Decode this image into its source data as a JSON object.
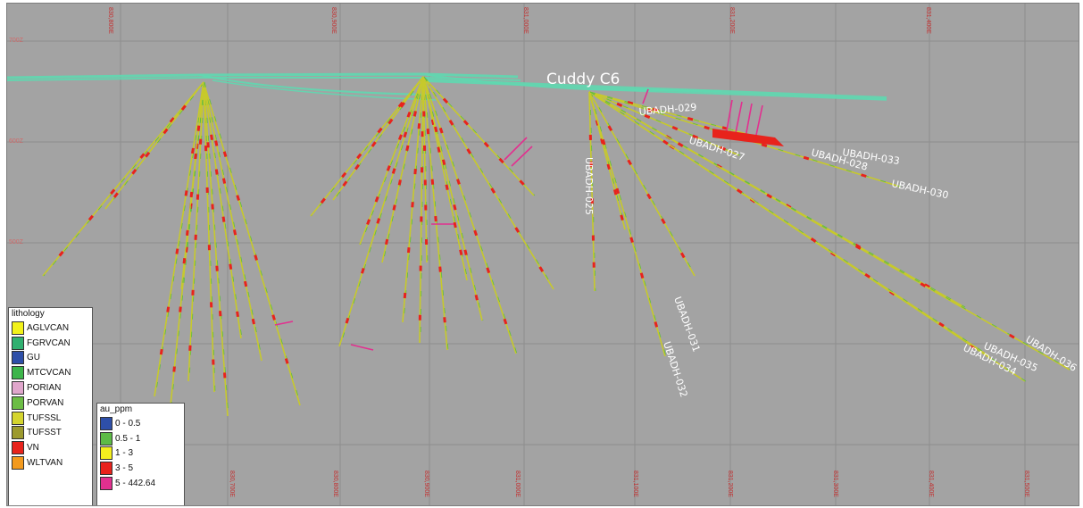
{
  "section": {
    "title": "Cuddy C6",
    "top_grid_labels": [
      "830,800E",
      "830,900E",
      "831,000E",
      "831,200E",
      "831,400E"
    ],
    "bottom_grid_labels": [
      "830,700E",
      "830,800E",
      "830,900E",
      "831,000E",
      "831,100E",
      "831,200E",
      "831,300E",
      "831,400E",
      "831,500E"
    ],
    "rl_labels": [
      "700Z",
      "600Z",
      "500Z"
    ],
    "hole_labels": [
      "UBADH-029",
      "UBADH-027",
      "UBADH-028",
      "UBADH-033",
      "UBADH-030",
      "UBADH-025",
      "UBADH-031",
      "UBADH-032",
      "UBADH-035",
      "UBADH-034",
      "UBADH-036"
    ]
  },
  "lithology_legend": {
    "title": "lithology",
    "items": [
      {
        "label": "AGLVCAN",
        "color": "#f2f21a"
      },
      {
        "label": "FGRVCAN",
        "color": "#30b070"
      },
      {
        "label": "GU",
        "color": "#2e4fa8"
      },
      {
        "label": "MTCVCAN",
        "color": "#3db54a"
      },
      {
        "label": "PORIAN",
        "color": "#e0a6cc"
      },
      {
        "label": "PORVAN",
        "color": "#6cbd45"
      },
      {
        "label": "TUFSSL",
        "color": "#d4d42e"
      },
      {
        "label": "TUFSST",
        "color": "#9c9a2e"
      },
      {
        "label": "VN",
        "color": "#e8231c"
      },
      {
        "label": "WLTVAN",
        "color": "#f39a1e"
      }
    ]
  },
  "au_legend": {
    "title": "au_ppm",
    "items": [
      {
        "label": "0 - 0.5",
        "color": "#2e4fa8"
      },
      {
        "label": "0.5 - 1",
        "color": "#5dbb46"
      },
      {
        "label": "1 - 3",
        "color": "#f5f01e"
      },
      {
        "label": "3 - 5",
        "color": "#e8231c"
      },
      {
        "label": "5 - 442.64",
        "color": "#e2308f"
      }
    ]
  },
  "colors": {
    "background": "#a3a3a3",
    "gridline": "#8e8e8e",
    "collar_lines": "#5fd8b0",
    "tick_text": "#c32f2f",
    "hole_label": "#ffffff"
  }
}
